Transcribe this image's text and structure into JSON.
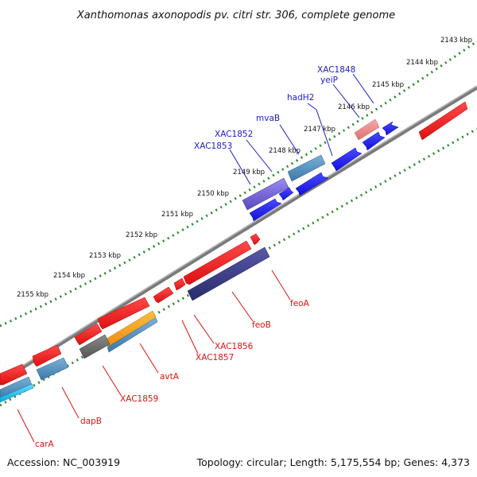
{
  "title": "Xanthomonas axonopodis pv. citri str. 306, complete genome",
  "accession": "Accession: NC_003919",
  "topology": "Topology: circular; Length: 5,175,554 bp; Genes: 4,373",
  "colors": {
    "forward_label": "#1a1acc",
    "reverse_label": "#dd1111",
    "forward_gene": "#1515ee",
    "reverse_gene": "#ee1111",
    "backbone": "#7a7a7a",
    "ruler_dots": "#2a8a2a"
  },
  "kbp_ticks": [
    "2143 kbp",
    "2144 kbp",
    "2145 kbp",
    "2146 kbp",
    "2147 kbp",
    "2148 kbp",
    "2149 kbp",
    "2150 kbp",
    "2151 kbp",
    "2152 kbp",
    "2153 kbp",
    "2154 kbp",
    "2155 kbp"
  ],
  "forward_labels": [
    "XAC1848",
    "yeiP",
    "hadH2",
    "mvaB",
    "XAC1852",
    "XAC1853"
  ],
  "reverse_labels": [
    "feoA",
    "feoB",
    "XAC1856",
    "XAC1857",
    "avtA",
    "XAC1859",
    "dapB",
    "carA"
  ]
}
